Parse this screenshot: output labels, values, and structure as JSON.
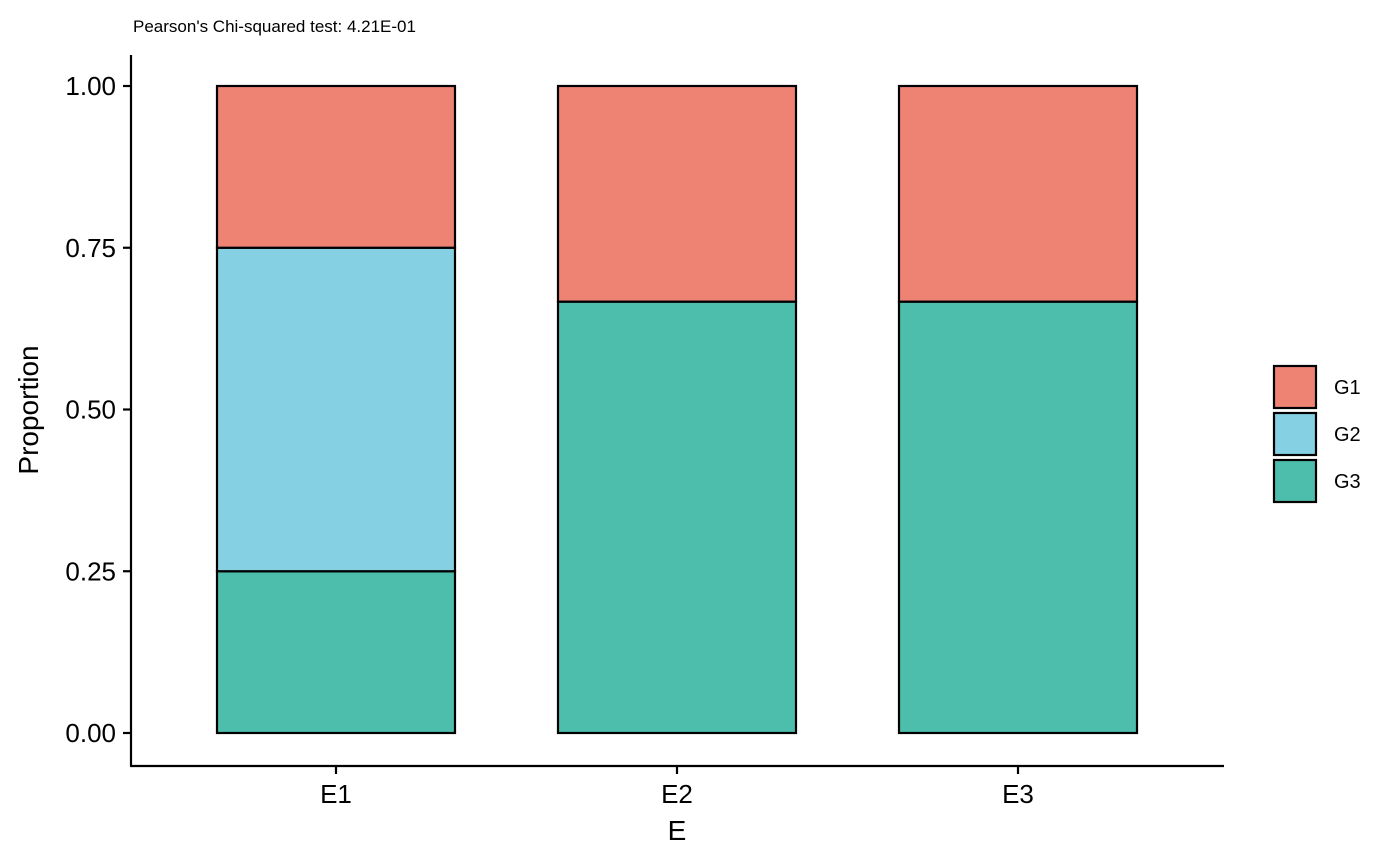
{
  "chart_data": {
    "type": "bar",
    "stacked": true,
    "title": "",
    "subtitle": "Pearson's Chi-squared test: 4.21E-01",
    "xlabel": "E",
    "ylabel": "Proportion",
    "categories": [
      "E1",
      "E2",
      "E3"
    ],
    "ylim": [
      0,
      1
    ],
    "yticks": [
      "0.00",
      "0.25",
      "0.50",
      "0.75",
      "1.00"
    ],
    "ytick_values": [
      0,
      0.25,
      0.5,
      0.75,
      1.0
    ],
    "grid": false,
    "legend_position": "right",
    "stack_order_bottom_to_top": [
      "G3",
      "G2",
      "G1"
    ],
    "series": [
      {
        "name": "G1",
        "color": "#EF8373",
        "values": [
          0.25,
          0.3333,
          0.3333
        ]
      },
      {
        "name": "G2",
        "color": "#85D0E3",
        "values": [
          0.5,
          0,
          0
        ]
      },
      {
        "name": "G3",
        "color": "#4DBDAC",
        "values": [
          0.25,
          0.6667,
          0.6667
        ]
      }
    ]
  }
}
